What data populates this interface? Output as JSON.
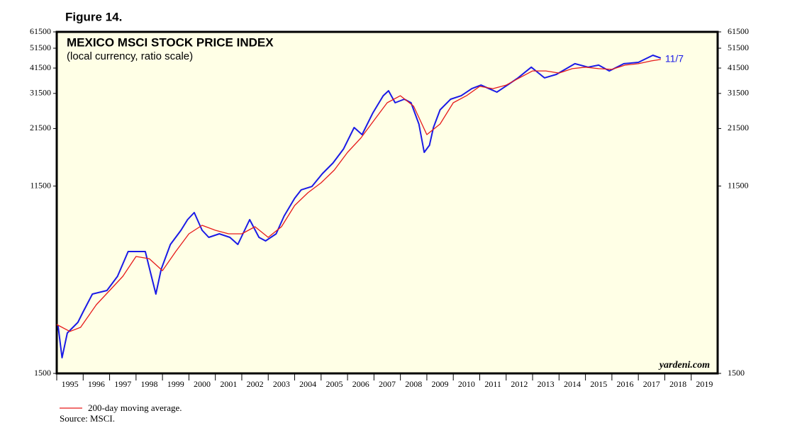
{
  "chart_data": {
    "type": "line",
    "figure_label": "Figure 14.",
    "title": "MEXICO MSCI STOCK PRICE INDEX",
    "subtitle": "(local currency, ratio scale)",
    "end_label": "11/7",
    "watermark": "yardeni.com",
    "source": "Source: MSCI.",
    "log_scale": true,
    "xlim": [
      1995,
      2020
    ],
    "xticks": [
      1995,
      1996,
      1997,
      1998,
      1999,
      2000,
      2001,
      2002,
      2003,
      2004,
      2005,
      2006,
      2007,
      2008,
      2009,
      2010,
      2011,
      2012,
      2013,
      2014,
      2015,
      2016,
      2017,
      2018,
      2019
    ],
    "ylim": [
      1500,
      61500
    ],
    "yticks": [
      1500,
      11500,
      21500,
      31500,
      41500,
      51500,
      61500
    ],
    "series": [
      {
        "name": "MSCI Mexico",
        "color": "#1a1ae6",
        "x": [
          1995.05,
          1995.2,
          1995.4,
          1995.8,
          1996.0,
          1996.35,
          1996.9,
          1997.3,
          1997.7,
          1998.1,
          1998.35,
          1998.55,
          1998.75,
          1998.95,
          1999.3,
          1999.7,
          1999.95,
          2000.2,
          2000.5,
          2000.75,
          2001.15,
          2001.55,
          2001.85,
          2002.3,
          2002.65,
          2002.9,
          2003.3,
          2003.6,
          2004.0,
          2004.25,
          2004.65,
          2005.05,
          2005.45,
          2005.85,
          2006.25,
          2006.55,
          2006.95,
          2007.35,
          2007.55,
          2007.8,
          2008.15,
          2008.4,
          2008.7,
          2008.9,
          2009.1,
          2009.25,
          2009.5,
          2009.9,
          2010.3,
          2010.7,
          2011.05,
          2011.35,
          2011.65,
          2012.05,
          2012.45,
          2012.95,
          2013.45,
          2013.9,
          2014.6,
          2015.1,
          2015.5,
          2015.9,
          2016.45,
          2017.0,
          2017.55,
          2017.85
        ],
        "values": [
          2514,
          1778,
          2327,
          2613,
          2932,
          3555,
          3694,
          4310,
          5643,
          5643,
          5643,
          4480,
          3555,
          4656,
          6096,
          7110,
          7985,
          8624,
          7110,
          6585,
          6845,
          6585,
          6096,
          7985,
          6585,
          6337,
          6845,
          8298,
          10063,
          11040,
          11450,
          13175,
          14785,
          17240,
          21740,
          20120,
          25370,
          30730,
          32430,
          28460,
          29580,
          28460,
          22590,
          16600,
          17930,
          21740,
          26350,
          29580,
          30730,
          33180,
          34480,
          33180,
          31950,
          34480,
          37300,
          41900,
          37300,
          38740,
          43500,
          41900,
          42850,
          40230,
          43500,
          44140,
          47700,
          46270
        ]
      },
      {
        "name": "200-day moving average.",
        "color": "#e61a1a",
        "x": [
          1995.0,
          1995.5,
          1995.9,
          1996.5,
          1997.0,
          1997.5,
          1998.0,
          1998.5,
          1999.0,
          1999.5,
          2000.0,
          2000.5,
          2001.0,
          2001.5,
          2002.0,
          2002.5,
          2003.0,
          2003.5,
          2004.0,
          2004.5,
          2005.0,
          2005.5,
          2006.0,
          2006.5,
          2007.0,
          2007.5,
          2008.0,
          2008.5,
          2009.0,
          2009.5,
          2010.0,
          2010.5,
          2011.0,
          2011.5,
          2012.0,
          2012.5,
          2013.0,
          2013.5,
          2014.0,
          2014.5,
          2015.0,
          2015.5,
          2016.0,
          2016.5,
          2017.0,
          2017.5,
          2017.85
        ],
        "values": [
          2553,
          2367,
          2475,
          3166,
          3694,
          4310,
          5347,
          5223,
          4583,
          5643,
          6845,
          7506,
          7110,
          6845,
          6845,
          7392,
          6585,
          7392,
          9310,
          10700,
          11920,
          13690,
          16600,
          19370,
          23490,
          28460,
          30730,
          27400,
          20120,
          22590,
          28460,
          30730,
          34010,
          33180,
          34480,
          37300,
          40230,
          40230,
          39320,
          41230,
          41900,
          41230,
          40920,
          42850,
          43500,
          44890,
          45580
        ]
      }
    ]
  }
}
